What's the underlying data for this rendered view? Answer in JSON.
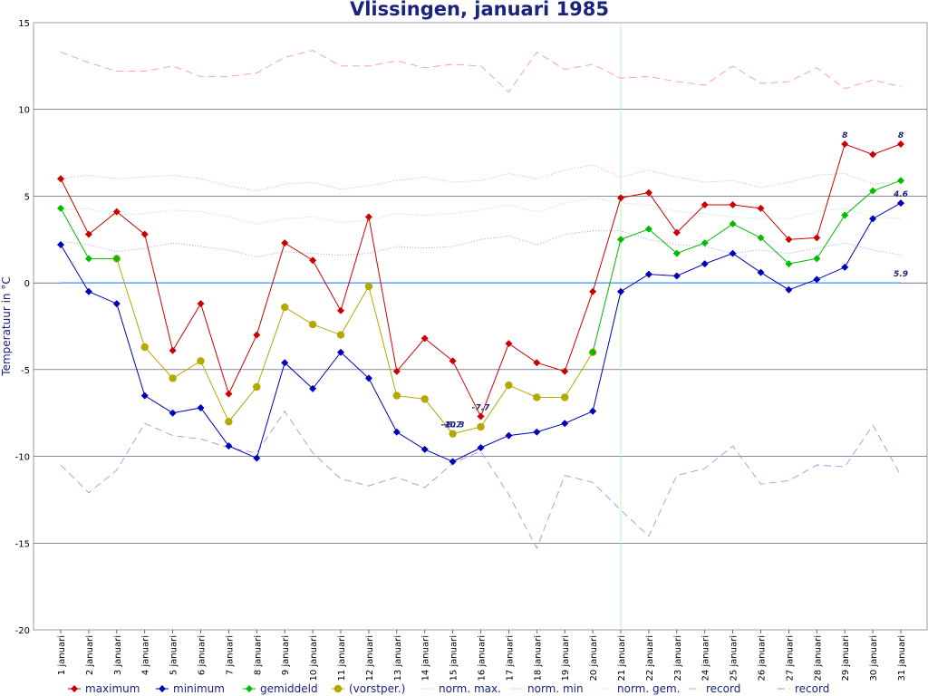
{
  "chart_data": {
    "type": "line",
    "title": "Vlissingen, januari 1985",
    "ylabel": "Temperatuur in °C",
    "xlabel": "",
    "ylim": [
      -20,
      15
    ],
    "yticks": [
      15,
      10,
      5,
      0,
      -5,
      -10,
      -15,
      -20
    ],
    "grid": true,
    "legend_position": "bottom",
    "categories": [
      "1 januari",
      "2 januari",
      "3 januari",
      "4 januari",
      "5 januari",
      "6 januari",
      "7 januari",
      "8 januari",
      "9 januari",
      "10 januari",
      "11 januari",
      "12 januari",
      "13 januari",
      "14 januari",
      "15 januari",
      "16 januari",
      "17 januari",
      "18 januari",
      "19 januari",
      "20 januari",
      "21 januari",
      "22 januari",
      "23 januari",
      "24 januari",
      "25 januari",
      "26 januari",
      "27 januari",
      "28 januari",
      "29 januari",
      "30 januari",
      "31 januari"
    ],
    "today_index": 20,
    "series": [
      {
        "name": "maximum",
        "color": "#cc0000",
        "style": "solid",
        "marker": "diamond",
        "values": [
          6,
          2.8,
          4.1,
          2.8,
          -3.9,
          -1.2,
          -6.4,
          -3.0,
          2.3,
          1.3,
          -1.6,
          3.8,
          -5.1,
          -3.2,
          -4.5,
          -7.7,
          -3.5,
          -4.6,
          -5.1,
          -0.5,
          4.9,
          5.2,
          2.9,
          4.5,
          4.5,
          4.3,
          2.5,
          2.6,
          8.0,
          7.4,
          8.0
        ]
      },
      {
        "name": "minimum",
        "color": "#0000bb",
        "style": "solid",
        "marker": "diamond",
        "values": [
          2.2,
          -0.5,
          -1.2,
          -6.5,
          -7.5,
          -7.2,
          -9.4,
          -10.1,
          -4.6,
          -6.1,
          -4.0,
          -5.5,
          -8.6,
          -9.6,
          -10.3,
          -9.5,
          -8.8,
          -8.6,
          -8.1,
          -7.4,
          -0.5,
          0.5,
          0.4,
          1.1,
          1.7,
          0.6,
          -0.4,
          0.2,
          0.9,
          3.7,
          4.6
        ]
      },
      {
        "name": "gemiddeld",
        "color": "#00bb00",
        "style": "solid",
        "marker": "diamond",
        "values": [
          4.3,
          1.4,
          1.4,
          null,
          null,
          null,
          null,
          null,
          null,
          null,
          null,
          null,
          null,
          null,
          null,
          null,
          null,
          null,
          null,
          -4.0,
          2.5,
          3.1,
          1.7,
          2.3,
          3.4,
          2.6,
          1.1,
          1.4,
          3.9,
          5.3,
          5.9
        ]
      },
      {
        "name": "(vorstper.)",
        "color": "#b5a800",
        "style": "solid",
        "marker": "circle",
        "values": [
          null,
          null,
          1.4,
          -3.7,
          -5.5,
          -4.5,
          -8.0,
          -6.0,
          -1.4,
          -2.4,
          -3.0,
          -0.2,
          -6.5,
          -6.7,
          -8.7,
          -8.3,
          -5.9,
          -6.6,
          -6.6,
          -4.0,
          null,
          null,
          null,
          null,
          null,
          null,
          null,
          null,
          null,
          null,
          null
        ]
      },
      {
        "name": "norm. max.",
        "color": "#ff9999",
        "style": "dotted",
        "marker": "none",
        "values": [
          6.0,
          6.2,
          6.0,
          6.1,
          6.2,
          6.0,
          5.6,
          5.3,
          5.7,
          5.8,
          5.4,
          5.6,
          5.9,
          6.1,
          5.8,
          5.9,
          6.3,
          6.0,
          6.5,
          6.8,
          6.1,
          6.5,
          6.1,
          5.8,
          5.9,
          5.5,
          5.8,
          6.2,
          6.3,
          5.7,
          5.8
        ]
      },
      {
        "name": "norm. min",
        "color": "#9999ff",
        "style": "dotted",
        "marker": "none",
        "values": [
          2.4,
          2.2,
          1.8,
          2.0,
          2.3,
          2.1,
          1.9,
          1.5,
          1.8,
          1.7,
          1.6,
          1.7,
          2.1,
          2.0,
          2.1,
          2.5,
          2.7,
          2.2,
          2.8,
          3.0,
          3.0,
          2.5,
          2.2,
          2.1,
          1.7,
          1.9,
          1.7,
          2.0,
          2.3,
          1.9,
          1.6
        ]
      },
      {
        "name": "norm. gem.",
        "color": "#99ee99",
        "style": "dotted",
        "marker": "none",
        "values": [
          4.2,
          4.3,
          3.9,
          4.0,
          4.2,
          4.1,
          3.8,
          3.4,
          3.7,
          3.8,
          3.5,
          3.6,
          4.0,
          3.9,
          4.0,
          4.2,
          4.5,
          4.1,
          4.6,
          4.9,
          4.6,
          4.5,
          4.1,
          4.0,
          3.8,
          3.7,
          3.7,
          4.1,
          4.3,
          3.8,
          3.7
        ]
      },
      {
        "name": "record",
        "color": "#ff9999",
        "style": "dashed",
        "marker": "none",
        "values": [
          13.3,
          12.7,
          12.2,
          12.2,
          12.5,
          11.9,
          11.9,
          12.1,
          13.0,
          13.4,
          12.5,
          12.5,
          12.8,
          12.4,
          12.6,
          12.5,
          11.0,
          13.3,
          12.3,
          12.6,
          11.8,
          11.9,
          11.6,
          11.4,
          12.5,
          11.5,
          11.6,
          12.4,
          11.2,
          11.7,
          11.3
        ]
      },
      {
        "name": "record",
        "color": "#9999ee",
        "style": "dashed",
        "marker": "none",
        "values": [
          -10.5,
          -12.1,
          -10.8,
          -8.1,
          -8.8,
          -9.0,
          -9.5,
          -9.8,
          -7.4,
          -9.8,
          -11.3,
          -11.7,
          -11.2,
          -11.8,
          -10.4,
          -9.7,
          -12.2,
          -15.3,
          -11.1,
          -11.5,
          -13.1,
          -14.6,
          -11.1,
          -10.7,
          -9.4,
          -11.6,
          -11.4,
          -10.5,
          -10.6,
          -8.2,
          -11.1
        ]
      }
    ],
    "zero_line": {
      "color": "#66aaff",
      "value": 0
    },
    "annotations": [
      {
        "series": "maximum",
        "index": 28,
        "text": "8"
      },
      {
        "series": "maximum",
        "index": 30,
        "text": "8"
      },
      {
        "series": "minimum",
        "index": 30,
        "text": "4.6"
      },
      {
        "series": "maximum",
        "index": 15,
        "text": "-7.7"
      },
      {
        "series": "(vorstper.)",
        "index": 14,
        "text": "-10.3"
      },
      {
        "series": "(vorstper.)",
        "index": 14,
        "text": "-8.7"
      },
      {
        "series": "zero",
        "index": 30,
        "text": "5.9"
      }
    ]
  }
}
